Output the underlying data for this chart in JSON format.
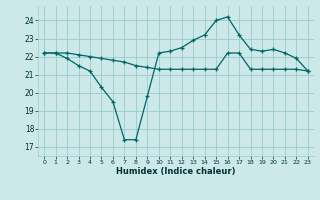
{
  "xlabel": "Humidex (Indice chaleur)",
  "background_color": "#cce8e8",
  "grid_color": "#99cccc",
  "line_color": "#006666",
  "xlim": [
    -0.5,
    23.5
  ],
  "ylim": [
    16.5,
    24.8
  ],
  "yticks": [
    17,
    18,
    19,
    20,
    21,
    22,
    23,
    24
  ],
  "xticks": [
    0,
    1,
    2,
    3,
    4,
    5,
    6,
    7,
    8,
    9,
    10,
    11,
    12,
    13,
    14,
    15,
    16,
    17,
    18,
    19,
    20,
    21,
    22,
    23
  ],
  "series1_x": [
    0,
    1,
    2,
    3,
    4,
    5,
    6,
    7,
    8,
    9,
    10,
    11,
    12,
    13,
    14,
    15,
    16,
    17,
    18,
    19,
    20,
    21,
    22,
    23
  ],
  "series1_y": [
    22.2,
    22.2,
    21.9,
    21.5,
    21.2,
    20.3,
    19.5,
    17.4,
    17.4,
    19.8,
    22.2,
    22.3,
    22.5,
    22.9,
    23.2,
    24.0,
    24.2,
    23.2,
    22.4,
    22.3,
    22.4,
    22.2,
    21.9,
    21.2
  ],
  "series2_x": [
    0,
    1,
    2,
    3,
    4,
    5,
    6,
    7,
    8,
    9,
    10,
    11,
    12,
    13,
    14,
    15,
    16,
    17,
    18,
    19,
    20,
    21,
    22,
    23
  ],
  "series2_y": [
    22.2,
    22.2,
    22.2,
    22.1,
    22.0,
    21.9,
    21.8,
    21.7,
    21.5,
    21.4,
    21.3,
    21.3,
    21.3,
    21.3,
    21.3,
    21.3,
    22.2,
    22.2,
    21.3,
    21.3,
    21.3,
    21.3,
    21.3,
    21.2
  ],
  "xlabel_fontsize": 6,
  "tick_fontsize": 5.5,
  "linewidth": 0.9,
  "markersize": 3
}
